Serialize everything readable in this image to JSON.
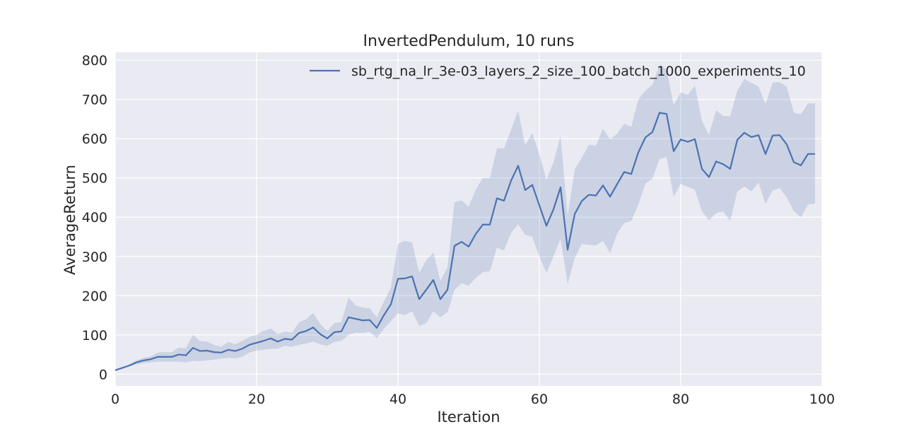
{
  "chart_data": {
    "type": "line",
    "title": "InvertedPendulum, 10 runs",
    "xlabel": "Iteration",
    "ylabel": "AverageReturn",
    "xlim": [
      0,
      100
    ],
    "ylim": [
      -30,
      820
    ],
    "xticks": [
      0,
      20,
      40,
      60,
      80,
      100
    ],
    "yticks": [
      0,
      100,
      200,
      300,
      400,
      500,
      600,
      700,
      800
    ],
    "grid": true,
    "legend_position": "top-right",
    "colors": {
      "line": "#4c72b0",
      "band": "#4c72b0",
      "background": "#eaeaf2",
      "grid": "#ffffff"
    },
    "series": [
      {
        "name": "sb_rtg_na_lr_3e-03_layers_2_size_100_batch_1000_experiments_10",
        "x": [
          0,
          1,
          2,
          3,
          4,
          5,
          6,
          7,
          8,
          9,
          10,
          11,
          12,
          13,
          14,
          15,
          16,
          17,
          18,
          19,
          20,
          21,
          22,
          23,
          24,
          25,
          26,
          27,
          28,
          29,
          30,
          31,
          32,
          33,
          34,
          35,
          36,
          37,
          38,
          39,
          40,
          41,
          42,
          43,
          44,
          45,
          46,
          47,
          48,
          49,
          50,
          51,
          52,
          53,
          54,
          55,
          56,
          57,
          58,
          59,
          60,
          61,
          62,
          63,
          64,
          65,
          66,
          67,
          68,
          69,
          70,
          71,
          72,
          73,
          74,
          75,
          76,
          77,
          78,
          79,
          80,
          81,
          82,
          83,
          84,
          85,
          86,
          87,
          88,
          89,
          90,
          91,
          92,
          93,
          94,
          95,
          96,
          97,
          98,
          99
        ],
        "y": [
          10,
          16,
          22,
          30,
          35,
          38,
          44,
          44,
          44,
          50,
          48,
          67,
          59,
          60,
          56,
          55,
          62,
          59,
          65,
          75,
          80,
          85,
          91,
          83,
          90,
          88,
          105,
          110,
          119,
          102,
          91,
          107,
          109,
          145,
          141,
          137,
          138,
          118,
          150,
          178,
          243,
          244,
          249,
          191,
          215,
          240,
          191,
          215,
          327,
          337,
          325,
          357,
          381,
          381,
          448,
          442,
          493,
          531,
          469,
          482,
          430,
          378,
          420,
          476,
          317,
          408,
          441,
          457,
          455,
          481,
          452,
          484,
          515,
          510,
          565,
          603,
          617,
          666,
          663,
          568,
          598,
          592,
          599,
          523,
          502,
          542,
          535,
          523,
          597,
          615,
          604,
          609,
          561,
          608,
          609,
          585,
          540,
          532,
          561,
          561
        ],
        "y_low": [
          10,
          15,
          20,
          25,
          28,
          30,
          32,
          32,
          32,
          32,
          30,
          34,
          33,
          35,
          37,
          40,
          42,
          40,
          45,
          55,
          60,
          62,
          65,
          65,
          72,
          70,
          75,
          78,
          83,
          76,
          72,
          82,
          85,
          100,
          106,
          105,
          108,
          92,
          115,
          135,
          155,
          150,
          160,
          123,
          130,
          160,
          145,
          158,
          215,
          232,
          225,
          245,
          260,
          262,
          322,
          315,
          360,
          382,
          355,
          350,
          300,
          258,
          300,
          345,
          230,
          295,
          332,
          330,
          328,
          340,
          308,
          358,
          385,
          390,
          432,
          485,
          498,
          548,
          553,
          452,
          485,
          477,
          470,
          415,
          392,
          410,
          415,
          390,
          465,
          478,
          466,
          488,
          434,
          468,
          474,
          450,
          415,
          400,
          432,
          435
        ],
        "y_high": [
          10,
          17,
          25,
          35,
          42,
          45,
          55,
          56,
          56,
          68,
          66,
          100,
          84,
          83,
          74,
          70,
          82,
          76,
          85,
          95,
          100,
          110,
          116,
          102,
          108,
          106,
          132,
          140,
          156,
          128,
          110,
          130,
          133,
          195,
          175,
          170,
          168,
          145,
          185,
          221,
          332,
          340,
          335,
          258,
          290,
          310,
          238,
          272,
          438,
          443,
          426,
          470,
          500,
          500,
          575,
          575,
          623,
          671,
          583,
          614,
          560,
          495,
          540,
          607,
          403,
          522,
          551,
          584,
          582,
          625,
          598,
          612,
          638,
          630,
          700,
          722,
          738,
          787,
          776,
          685,
          718,
          712,
          735,
          645,
          610,
          672,
          658,
          657,
          722,
          752,
          742,
          733,
          688,
          743,
          744,
          732,
          666,
          662,
          690,
          690
        ]
      }
    ]
  }
}
